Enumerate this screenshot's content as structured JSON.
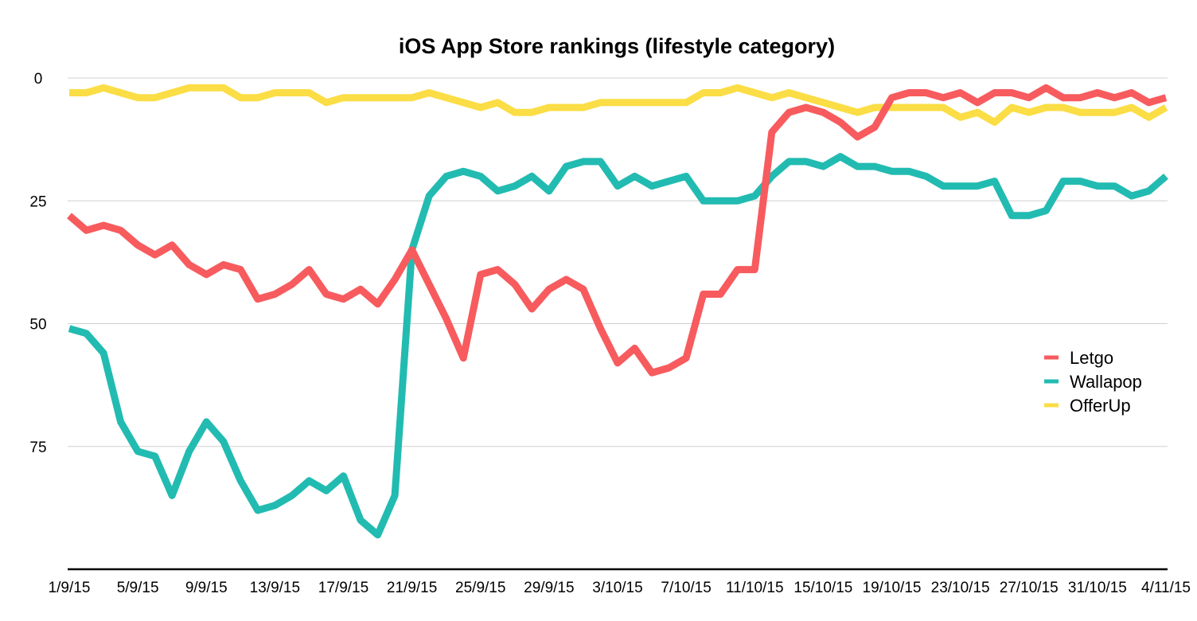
{
  "chart_data": {
    "type": "line",
    "title": "iOS App Store rankings (lifestyle category)",
    "xlabel": "",
    "ylabel": "",
    "y_reversed": true,
    "ylim": [
      0,
      100
    ],
    "y_ticks": [
      0,
      25,
      50,
      75
    ],
    "grid": true,
    "legend_position": "right",
    "x_tick_labels": [
      "1/9/15",
      "5/9/15",
      "9/9/15",
      "13/9/15",
      "17/9/15",
      "21/9/15",
      "25/9/15",
      "29/9/15",
      "3/10/15",
      "7/10/15",
      "11/10/15",
      "15/10/15",
      "19/10/15",
      "23/10/15",
      "27/10/15",
      "31/10/15",
      "4/11/15"
    ],
    "x": [
      "1/9/15",
      "2/9/15",
      "3/9/15",
      "4/9/15",
      "5/9/15",
      "6/9/15",
      "7/9/15",
      "8/9/15",
      "9/9/15",
      "10/9/15",
      "11/9/15",
      "12/9/15",
      "13/9/15",
      "14/9/15",
      "15/9/15",
      "16/9/15",
      "17/9/15",
      "18/9/15",
      "19/9/15",
      "20/9/15",
      "21/9/15",
      "22/9/15",
      "23/9/15",
      "24/9/15",
      "25/9/15",
      "26/9/15",
      "27/9/15",
      "28/9/15",
      "29/9/15",
      "30/9/15",
      "1/10/15",
      "2/10/15",
      "3/10/15",
      "4/10/15",
      "5/10/15",
      "6/10/15",
      "7/10/15",
      "8/10/15",
      "9/10/15",
      "10/10/15",
      "11/10/15",
      "12/10/15",
      "13/10/15",
      "14/10/15",
      "15/10/15",
      "16/10/15",
      "17/10/15",
      "18/10/15",
      "19/10/15",
      "20/10/15",
      "21/10/15",
      "22/10/15",
      "23/10/15",
      "24/10/15",
      "25/10/15",
      "26/10/15",
      "27/10/15",
      "28/10/15",
      "29/10/15",
      "30/10/15",
      "31/10/15",
      "1/11/15",
      "2/11/15",
      "3/11/15",
      "4/11/15"
    ],
    "series": [
      {
        "name": "Letgo",
        "color": "#f75b5e",
        "values": [
          28,
          31,
          30,
          31,
          34,
          36,
          34,
          38,
          40,
          38,
          39,
          45,
          44,
          42,
          39,
          44,
          45,
          43,
          46,
          41,
          35,
          42,
          49,
          57,
          40,
          39,
          42,
          47,
          43,
          41,
          43,
          51,
          58,
          55,
          60,
          59,
          57,
          44,
          44,
          39,
          39,
          11,
          7,
          6,
          7,
          9,
          12,
          10,
          4,
          3,
          3,
          4,
          3,
          5,
          3,
          3,
          4,
          2,
          4,
          4,
          3,
          4,
          3,
          5,
          4
        ]
      },
      {
        "name": "Wallapop",
        "color": "#22bbb1",
        "values": [
          51,
          52,
          56,
          70,
          76,
          77,
          85,
          76,
          70,
          74,
          82,
          88,
          87,
          85,
          82,
          84,
          81,
          90,
          93,
          85,
          35,
          24,
          20,
          19,
          20,
          23,
          22,
          20,
          23,
          18,
          17,
          17,
          22,
          20,
          22,
          21,
          20,
          25,
          25,
          25,
          24,
          20,
          17,
          17,
          18,
          16,
          18,
          18,
          19,
          19,
          20,
          22,
          22,
          22,
          21,
          28,
          28,
          27,
          21,
          21,
          22,
          22,
          24,
          23,
          20
        ]
      },
      {
        "name": "OfferUp",
        "color": "#fbdd45",
        "values": [
          3,
          3,
          2,
          3,
          4,
          4,
          3,
          2,
          2,
          2,
          4,
          4,
          3,
          3,
          3,
          5,
          4,
          4,
          4,
          4,
          4,
          3,
          4,
          5,
          6,
          5,
          7,
          7,
          6,
          6,
          6,
          5,
          5,
          5,
          5,
          5,
          5,
          3,
          3,
          2,
          3,
          4,
          3,
          4,
          5,
          6,
          7,
          6,
          6,
          6,
          6,
          6,
          8,
          7,
          9,
          6,
          7,
          6,
          6,
          7,
          7,
          7,
          6,
          8,
          6
        ]
      }
    ]
  }
}
